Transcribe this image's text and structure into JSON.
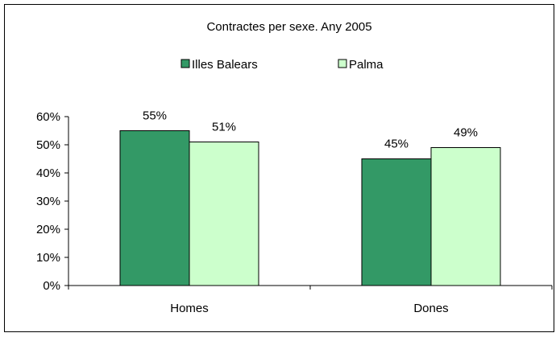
{
  "chart_data": {
    "type": "bar",
    "title": "Contractes per sexe. Any 2005",
    "categories": [
      "Homes",
      "Dones"
    ],
    "series": [
      {
        "name": "Illes Balears",
        "color": "#339966",
        "values": [
          55,
          45
        ],
        "labels": [
          "55%",
          "45%"
        ]
      },
      {
        "name": "Palma",
        "color": "#ccffcc",
        "values": [
          51,
          49
        ],
        "labels": [
          "51%",
          "49%"
        ]
      }
    ],
    "ylim": [
      0,
      60
    ],
    "yticks": [
      0,
      10,
      20,
      30,
      40,
      50,
      60
    ],
    "ytick_labels": [
      "0%",
      "10%",
      "20%",
      "30%",
      "40%",
      "50%",
      "60%"
    ],
    "grid": false,
    "legend_position": "top"
  }
}
